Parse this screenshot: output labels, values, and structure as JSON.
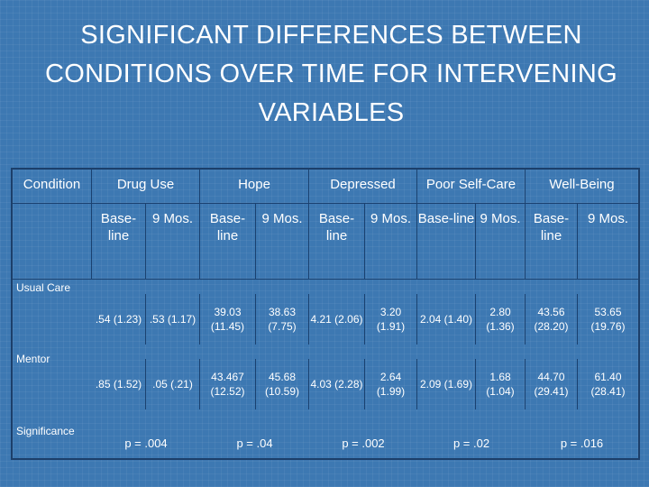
{
  "title": "SIGNIFICANT DIFFERENCES BETWEEN CONDITIONS OVER TIME FOR INTERVENING VARIABLES",
  "table": {
    "condition_header": "Condition",
    "groups": [
      {
        "name": "Drug Use",
        "sub": [
          "Base-line",
          "9 Mos."
        ],
        "usual_care": [
          ".54 (1.23)",
          ".53 (1.17)"
        ],
        "mentor": [
          ".85 (1.52)",
          ".05 (.21)"
        ],
        "significance": "p = .004"
      },
      {
        "name": "Hope",
        "sub": [
          "Base-line",
          "9 Mos."
        ],
        "usual_care": [
          "39.03 (11.45)",
          "38.63 (7.75)"
        ],
        "mentor": [
          "43.467 (12.52)",
          "45.68 (10.59)"
        ],
        "significance": "p = .04"
      },
      {
        "name": "Depressed",
        "sub": [
          "Base-line",
          "9 Mos."
        ],
        "usual_care": [
          "4.21 (2.06)",
          "3.20 (1.91)"
        ],
        "mentor": [
          "4.03 (2.28)",
          "2.64 (1.99)"
        ],
        "significance": "p = .002"
      },
      {
        "name": "Poor Self-Care",
        "sub": [
          "Base-line",
          "9 Mos."
        ],
        "usual_care": [
          "2.04 (1.40)",
          "2.80 (1.36)"
        ],
        "mentor": [
          "2.09 (1.69)",
          "1.68 (1.04)"
        ],
        "significance": "p = .02"
      },
      {
        "name": "Well-Being",
        "sub": [
          "Base-line",
          "9 Mos."
        ],
        "usual_care": [
          "43.56 (28.20)",
          "53.65 (19.76)"
        ],
        "mentor": [
          "44.70 (29.41)",
          "61.40 (28.41)"
        ],
        "significance": "p = .016"
      }
    ],
    "row_labels": {
      "usual_care": "Usual Care",
      "mentor": "Mentor",
      "significance": "Significance"
    }
  }
}
